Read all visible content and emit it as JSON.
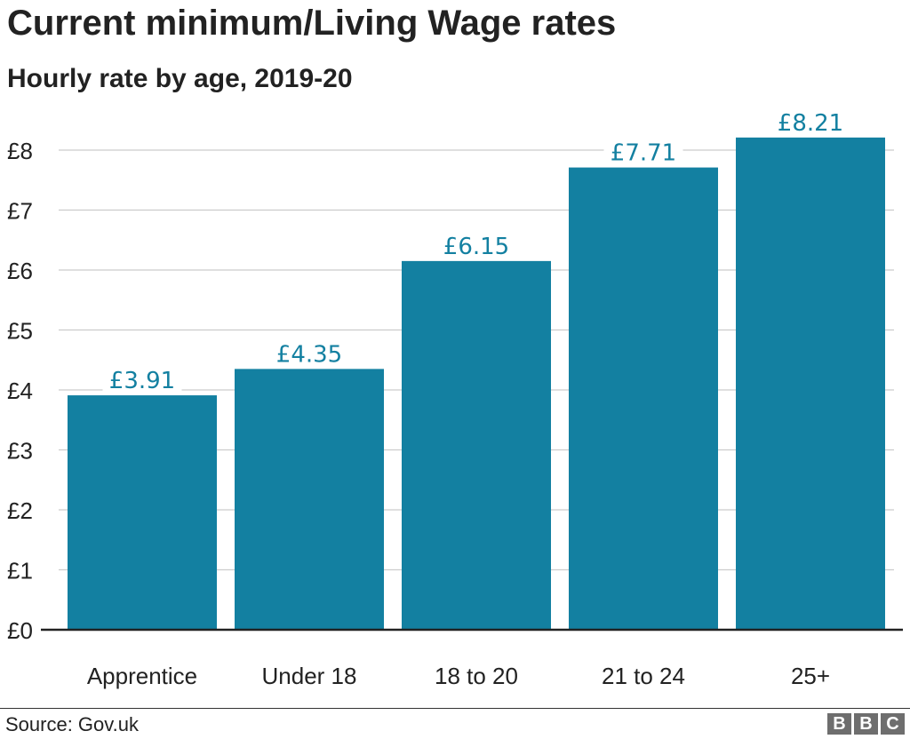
{
  "header": {
    "title": "Current minimum/Living Wage rates",
    "subtitle": "Hourly rate by age, 2019-20"
  },
  "footer": {
    "source": "Source: Gov.uk",
    "logo_letters": [
      "B",
      "B",
      "C"
    ]
  },
  "colors": {
    "bar": "#1380a1",
    "label": "#1380a1",
    "grid": "#cccccc",
    "axis": "#222222",
    "text": "#222222"
  },
  "chart_data": {
    "type": "bar",
    "title": "Current minimum/Living Wage rates",
    "subtitle": "Hourly rate by age, 2019-20",
    "categories": [
      "Apprentice",
      "Under 18",
      "18 to 20",
      "21 to 24",
      "25+"
    ],
    "values": [
      3.91,
      4.35,
      6.15,
      7.71,
      8.21
    ],
    "data_labels": [
      "£3.91",
      "£4.35",
      "£6.15",
      "£7.71",
      "£8.21"
    ],
    "yticks": [
      0,
      1,
      2,
      3,
      4,
      5,
      6,
      7,
      8
    ],
    "ytick_labels": [
      "£0",
      "£1",
      "£2",
      "£3",
      "£4",
      "£5",
      "£6",
      "£7",
      "£8"
    ],
    "ylim": [
      0,
      8.5
    ],
    "xlabel": "",
    "ylabel": "",
    "grid": true,
    "legend": "none"
  }
}
